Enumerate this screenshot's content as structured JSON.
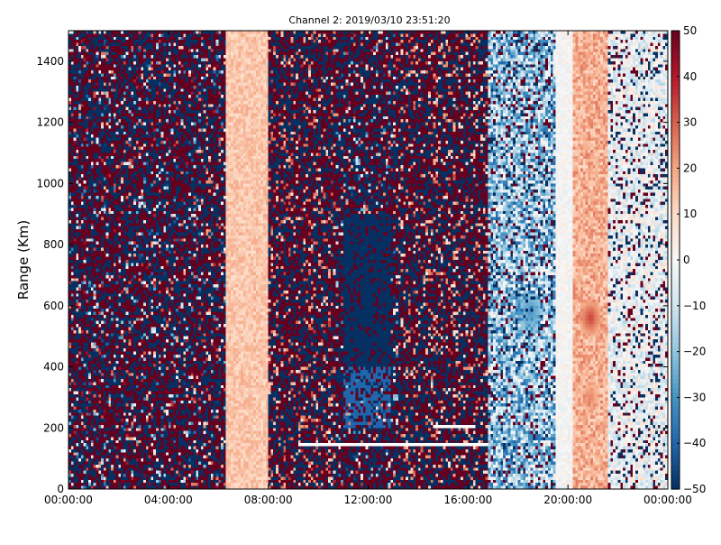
{
  "chart_data": {
    "type": "heatmap",
    "title": "Channel 2: 2019/03/10 23:51:20",
    "xlabel": "",
    "ylabel": "Range (Km)",
    "x_ticks": [
      "00:00:00",
      "04:00:00",
      "08:00:00",
      "12:00:00",
      "16:00:00",
      "20:00:00",
      "00:00:00"
    ],
    "x_range_hours": [
      0,
      24
    ],
    "y_ticks": [
      0,
      200,
      400,
      600,
      800,
      1000,
      1200,
      1400
    ],
    "y_range": [
      0,
      1500
    ],
    "colorbar": {
      "range": [
        -50,
        50
      ],
      "ticks": [
        50,
        40,
        30,
        20,
        10,
        0,
        -10,
        -20,
        -30,
        -40,
        -50
      ],
      "colormap": "RdBu_r",
      "low_color": "#053061",
      "mid_color": "#f7f7f7",
      "high_color": "#67001f"
    },
    "bands": [
      {
        "x_start": 0.0,
        "x_end": 5.5,
        "pattern": "noise",
        "mean": 0,
        "spread": 50
      },
      {
        "x_start": 5.5,
        "x_end": 5.7,
        "pattern": "noise",
        "mean": 5,
        "spread": 30
      },
      {
        "x_start": 5.7,
        "x_end": 6.3,
        "pattern": "noise",
        "mean": 0,
        "spread": 50
      },
      {
        "x_start": 6.3,
        "x_end": 8.0,
        "pattern": "smooth",
        "mean": 14,
        "spread": 5
      },
      {
        "x_start": 8.0,
        "x_end": 10.7,
        "pattern": "noise",
        "mean": 8,
        "spread": 50
      },
      {
        "x_start": 10.7,
        "x_end": 13.2,
        "pattern": "noise",
        "mean": -10,
        "spread": 50
      },
      {
        "x_start": 13.2,
        "x_end": 16.8,
        "pattern": "noise",
        "mean": 5,
        "spread": 50
      },
      {
        "x_start": 16.8,
        "x_end": 19.5,
        "pattern": "mixed",
        "mean": -18,
        "spread": 22
      },
      {
        "x_start": 19.5,
        "x_end": 20.2,
        "pattern": "smooth",
        "mean": 0,
        "spread": 5
      },
      {
        "x_start": 20.2,
        "x_end": 21.6,
        "pattern": "smooth",
        "mean": 18,
        "spread": 8
      },
      {
        "x_start": 21.6,
        "x_end": 24.0,
        "pattern": "mixed",
        "mean": -3,
        "spread": 12
      }
    ],
    "blue_core": {
      "x_start": 11.0,
      "x_end": 12.9,
      "y_start": 400,
      "y_end": 900,
      "value": -50
    },
    "blue_core_lower": {
      "x_start": 11.0,
      "x_end": 12.9,
      "y_start": 200,
      "y_end": 400,
      "value": -40
    },
    "hot_spots": [
      {
        "x_center": 20.9,
        "y_center": 560,
        "value": 35
      },
      {
        "x_center": 20.9,
        "y_center": 300,
        "value": 25
      }
    ],
    "cool_spots": [
      {
        "x_center": 18.5,
        "y_center": 580,
        "value": -30
      }
    ],
    "gaps": [
      {
        "x_start": 9.2,
        "x_end": 16.8,
        "y_start": 140,
        "y_end": 155
      },
      {
        "x_start": 14.6,
        "x_end": 16.3,
        "y_start": 205,
        "y_end": 215
      },
      {
        "x_start": 5.5,
        "x_end": 5.55,
        "y_start": 0,
        "y_end": 1500
      }
    ]
  }
}
